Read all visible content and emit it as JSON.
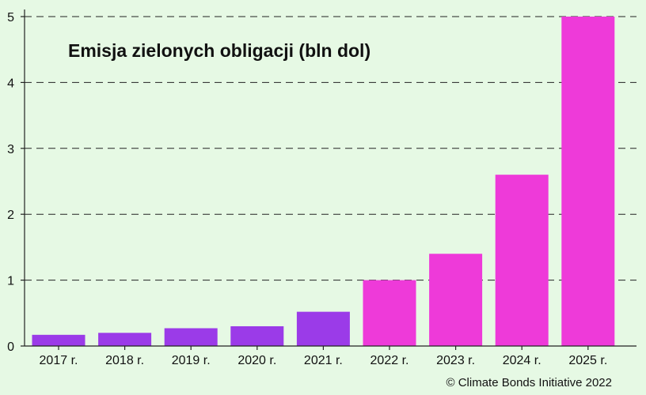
{
  "chart_data": {
    "type": "bar",
    "title": "Emisja zielonych obligacji (bln dol)",
    "xlabel": "",
    "ylabel": "",
    "categories": [
      "2017 r.",
      "2018 r.",
      "2019 r.",
      "2020 r.",
      "2021 r.",
      "2022 r.",
      "2023 r.",
      "2024 r.",
      "2025 r."
    ],
    "values": [
      0.17,
      0.2,
      0.27,
      0.3,
      0.52,
      1.0,
      1.4,
      2.6,
      5.0
    ],
    "bar_kind": [
      "actual",
      "actual",
      "actual",
      "actual",
      "actual",
      "forecast",
      "forecast",
      "forecast",
      "forecast"
    ],
    "ylim": [
      0,
      5
    ],
    "yticks": [
      "0",
      "1",
      "2",
      "3",
      "4",
      "5"
    ],
    "grid": "horizontal-dashed",
    "legend": "none",
    "colors": {
      "actual": "#9b3be8",
      "forecast": "#ee3ad9",
      "background": "#e6f9e4",
      "grid": "#222222",
      "axis": "#222222"
    }
  },
  "source": "© Climate Bonds Initiative 2022"
}
